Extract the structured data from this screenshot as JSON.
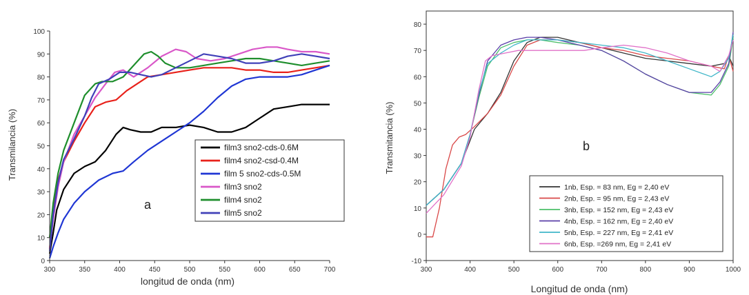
{
  "chart_data": [
    {
      "type": "line",
      "panel_label": "a",
      "xlabel": "longitud de onda (nm)",
      "ylabel": "Transmilancia (%)",
      "xlim": [
        300,
        700
      ],
      "ylim": [
        0,
        100
      ],
      "xticks": [
        300,
        350,
        400,
        450,
        500,
        550,
        600,
        650,
        700
      ],
      "yticks": [
        0,
        10,
        20,
        30,
        40,
        50,
        60,
        70,
        80,
        90,
        100
      ],
      "grid": false,
      "legend_position": "right-middle",
      "series": [
        {
          "name": "film3 sno2-cds-0.6M",
          "color": "#000000",
          "x": [
            300,
            305,
            310,
            320,
            335,
            350,
            365,
            380,
            395,
            405,
            415,
            430,
            445,
            460,
            480,
            500,
            520,
            540,
            560,
            580,
            600,
            620,
            640,
            660,
            680,
            700
          ],
          "y": [
            3,
            12,
            22,
            31,
            38,
            41,
            43,
            48,
            55,
            58,
            57,
            56,
            56,
            58,
            58,
            59,
            58,
            56,
            56,
            58,
            62,
            66,
            67,
            68,
            68,
            68
          ]
        },
        {
          "name": "film4 sno2-csd-0.4M",
          "color": "#e8211a",
          "x": [
            300,
            305,
            312,
            320,
            335,
            350,
            365,
            380,
            395,
            410,
            425,
            440,
            460,
            480,
            500,
            520,
            540,
            560,
            580,
            600,
            620,
            640,
            660,
            680,
            700
          ],
          "y": [
            5,
            22,
            35,
            43,
            52,
            60,
            67,
            69,
            70,
            74,
            77,
            80,
            81,
            82,
            83,
            84,
            84,
            84,
            83,
            83,
            82,
            82,
            83,
            84,
            85
          ]
        },
        {
          "name": "film 5 sno2-cds-0.5M",
          "color": "#1f36d4",
          "x": [
            300,
            305,
            312,
            320,
            335,
            350,
            370,
            390,
            405,
            420,
            440,
            460,
            480,
            500,
            520,
            540,
            560,
            580,
            600,
            620,
            640,
            660,
            680,
            700
          ],
          "y": [
            1,
            6,
            12,
            18,
            25,
            30,
            35,
            38,
            39,
            43,
            48,
            52,
            56,
            60,
            65,
            71,
            76,
            79,
            80,
            80,
            80,
            81,
            83,
            85
          ]
        },
        {
          "name": "film3 sno2",
          "color": "#d957c8",
          "x": [
            300,
            305,
            312,
            320,
            335,
            350,
            365,
            380,
            393,
            405,
            420,
            440,
            460,
            480,
            495,
            510,
            530,
            550,
            570,
            590,
            610,
            625,
            640,
            660,
            680,
            700
          ],
          "y": [
            5,
            18,
            32,
            43,
            55,
            63,
            71,
            77,
            82,
            83,
            80,
            84,
            89,
            92,
            91,
            88,
            87,
            88,
            90,
            92,
            93,
            93,
            92,
            91,
            91,
            90
          ]
        },
        {
          "name": "film4 sno2",
          "color": "#1e8e2c",
          "x": [
            300,
            305,
            312,
            320,
            335,
            350,
            365,
            375,
            390,
            405,
            420,
            435,
            445,
            455,
            465,
            480,
            500,
            520,
            540,
            560,
            580,
            600,
            620,
            640,
            660,
            680,
            700
          ],
          "y": [
            10,
            25,
            38,
            48,
            60,
            72,
            77,
            78,
            78,
            80,
            85,
            90,
            91,
            89,
            86,
            84,
            84,
            85,
            86,
            87,
            88,
            88,
            87,
            86,
            85,
            86,
            87
          ]
        },
        {
          "name": "film5 sno2",
          "color": "#4040b8",
          "x": [
            300,
            305,
            312,
            320,
            335,
            350,
            360,
            370,
            385,
            400,
            415,
            430,
            445,
            460,
            480,
            500,
            520,
            540,
            560,
            580,
            600,
            620,
            640,
            660,
            680,
            700
          ],
          "y": [
            4,
            20,
            34,
            44,
            53,
            63,
            71,
            77,
            79,
            82,
            82,
            81,
            80,
            81,
            84,
            87,
            90,
            89,
            88,
            86,
            86,
            87,
            89,
            90,
            89,
            88
          ]
        }
      ]
    },
    {
      "type": "line",
      "panel_label": "b",
      "xlabel": "Longitud de onda (nm)",
      "ylabel": "Transmitancia (%)",
      "xlim": [
        300,
        1000
      ],
      "ylim": [
        -10,
        85
      ],
      "xticks": [
        300,
        400,
        500,
        600,
        700,
        800,
        900,
        1000
      ],
      "yticks": [
        -10,
        0,
        10,
        20,
        30,
        40,
        50,
        60,
        70,
        80
      ],
      "grid": false,
      "legend_position": "bottom-right",
      "series": [
        {
          "name": "1nb, Esp. =  83 nm, Eg = 2,40 eV",
          "color": "#333333",
          "x": [
            300,
            340,
            380,
            410,
            440,
            470,
            500,
            530,
            560,
            600,
            650,
            700,
            750,
            800,
            850,
            900,
            950,
            980,
            990,
            1000
          ],
          "y": [
            11,
            17,
            27,
            40,
            46,
            54,
            66,
            73,
            75,
            75,
            73,
            71,
            69,
            67,
            66,
            65,
            64,
            65,
            68,
            64
          ]
        },
        {
          "name": "2nb, Esp. =  95 nm, Eg = 2,43 eV",
          "color": "#d94848",
          "x": [
            300,
            315,
            330,
            345,
            360,
            375,
            390,
            410,
            440,
            470,
            500,
            530,
            560,
            600,
            650,
            700,
            750,
            800,
            850,
            900,
            950,
            980,
            990,
            1000
          ],
          "y": [
            -1,
            -1,
            10,
            25,
            34,
            37,
            38,
            41,
            46,
            53,
            64,
            72,
            74,
            74,
            73,
            71,
            70,
            68,
            67,
            66,
            64,
            63,
            68,
            62
          ]
        },
        {
          "name": "3nb, Esp. = 152 nm, Eg = 2,43 eV",
          "color": "#4cbf6a",
          "x": [
            300,
            340,
            380,
            400,
            420,
            440,
            470,
            500,
            530,
            560,
            600,
            650,
            700,
            750,
            800,
            850,
            900,
            950,
            970,
            990,
            1000
          ],
          "y": [
            11,
            17,
            27,
            38,
            52,
            64,
            71,
            73,
            74,
            74,
            73,
            72,
            70,
            66,
            61,
            57,
            54,
            53,
            57,
            64,
            75
          ]
        },
        {
          "name": "4nb, Esp. = 162 nm, Eg = 2,40 eV",
          "color": "#5a3fa8",
          "x": [
            300,
            340,
            380,
            400,
            420,
            440,
            470,
            500,
            530,
            560,
            600,
            650,
            700,
            750,
            800,
            850,
            900,
            950,
            970,
            990,
            1000
          ],
          "y": [
            11,
            17,
            27,
            38,
            53,
            66,
            72,
            74,
            75,
            75,
            74,
            72,
            70,
            66,
            61,
            57,
            54,
            54,
            58,
            65,
            77
          ]
        },
        {
          "name": "5nb, Esp. = 227 nm, Eg = 2,41 eV",
          "color": "#3fb6c8",
          "x": [
            300,
            340,
            380,
            400,
            420,
            440,
            470,
            500,
            530,
            560,
            600,
            650,
            700,
            750,
            800,
            850,
            900,
            950,
            970,
            990,
            1000
          ],
          "y": [
            11,
            17,
            27,
            38,
            54,
            65,
            69,
            72,
            74,
            74,
            74,
            73,
            72,
            71,
            69,
            66,
            63,
            60,
            62,
            67,
            76
          ]
        },
        {
          "name": "6nb, Esp. =269 nm, Eg = 2,41 eV",
          "color": "#e070c8",
          "x": [
            300,
            340,
            380,
            400,
            420,
            435,
            450,
            480,
            510,
            540,
            580,
            620,
            660,
            700,
            750,
            800,
            850,
            900,
            950,
            970,
            990,
            1000
          ],
          "y": [
            8,
            15,
            26,
            37,
            55,
            66,
            68,
            69,
            70,
            70,
            70,
            70,
            70,
            71,
            72,
            71,
            69,
            66,
            64,
            62,
            68,
            74
          ]
        }
      ]
    }
  ]
}
